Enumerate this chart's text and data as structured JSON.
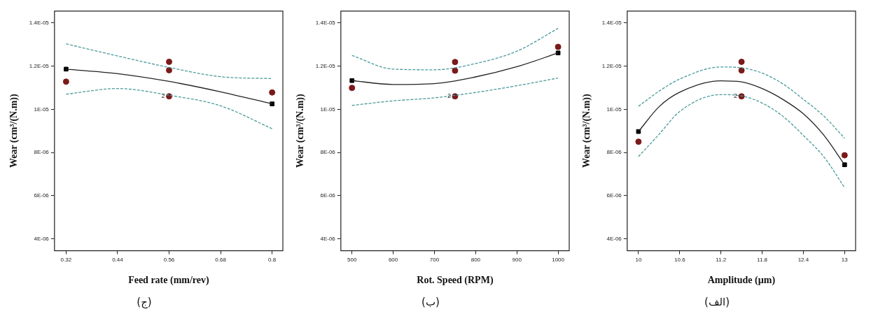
{
  "chart_data": [
    {
      "type": "scatter",
      "title": "(ج)",
      "xlabel": "Feed rate (mm/rev)",
      "ylabel": "Wear (cm³/(N.m))",
      "xlim": [
        0.293,
        0.825
      ],
      "xticks": [
        0.32,
        0.44,
        0.56,
        0.68,
        0.8
      ],
      "ylim": [
        3.45e-06,
        1.455e-05
      ],
      "yticks": [
        {
          "value": 1.4e-05,
          "label": "1.4E-05"
        },
        {
          "value": 1.2e-05,
          "label": "1.2E-05"
        },
        {
          "value": 1e-05,
          "label": "1E-05"
        },
        {
          "value": 8e-06,
          "label": "8E-06"
        },
        {
          "value": 6e-06,
          "label": "6E-06"
        },
        {
          "value": 4e-06,
          "label": "4E-06"
        }
      ],
      "grid": false,
      "legend": false,
      "series": [
        {
          "type": "line",
          "color": "#222222",
          "marker": "none",
          "line_style": "solid",
          "x": [
            0.32,
            0.44,
            0.56,
            0.68,
            0.8
          ],
          "values": [
            1.186e-05,
            1.165e-05,
            1.129e-05,
            1.081e-05,
            1.025e-05
          ]
        },
        {
          "type": "line",
          "color": "#4a9a9a",
          "marker": "none",
          "line_style": "dashed",
          "x": [
            0.32,
            0.44,
            0.56,
            0.68,
            0.8
          ],
          "values": [
            1.303e-05,
            1.247e-05,
            1.194e-05,
            1.151e-05,
            1.142e-05
          ]
        },
        {
          "type": "line",
          "color": "#4a9a9a",
          "marker": "none",
          "line_style": "dashed",
          "x": [
            0.32,
            0.44,
            0.56,
            0.68,
            0.8
          ],
          "values": [
            1.07e-05,
            1.096e-05,
            1.065e-05,
            1.016e-05,
            9.1e-06
          ]
        },
        {
          "type": "scatter",
          "color": "#000000",
          "marker": "square",
          "x": [
            0.32,
            0.8
          ],
          "values": [
            1.186e-05,
            1.025e-05
          ]
        },
        {
          "type": "scatter",
          "color": "#7a1a1a",
          "marker": "circle",
          "x": [
            0.32,
            0.56,
            0.56,
            0.56,
            0.8
          ],
          "values": [
            1.128e-05,
            1.22e-05,
            1.181e-05,
            1.06e-05,
            1.078e-05
          ]
        }
      ],
      "annotations": [
        {
          "text": "2",
          "x": 0.56,
          "y": 1.06e-05
        }
      ]
    },
    {
      "type": "scatter",
      "title": "(ب)",
      "xlabel": "Rot. Speed (RPM)",
      "ylabel": "Wear (cm³/(N.m))",
      "xlim": [
        473,
        1027
      ],
      "xticks": [
        500,
        600,
        700,
        800,
        900,
        1000
      ],
      "ylim": [
        3.45e-06,
        1.455e-05
      ],
      "yticks": [
        {
          "value": 1.4e-05,
          "label": "1.4E-05"
        },
        {
          "value": 1.2e-05,
          "label": "1.2E-05"
        },
        {
          "value": 1e-05,
          "label": "1E-05"
        },
        {
          "value": 8e-06,
          "label": "8E-06"
        },
        {
          "value": 6e-06,
          "label": "6E-06"
        },
        {
          "value": 4e-06,
          "label": "4E-06"
        }
      ],
      "grid": false,
      "legend": false,
      "series": [
        {
          "type": "line",
          "color": "#222222",
          "marker": "none",
          "line_style": "solid",
          "x": [
            500,
            600,
            700,
            800,
            900,
            1000
          ],
          "values": [
            1.133e-05,
            1.115e-05,
            1.119e-05,
            1.15e-05,
            1.197e-05,
            1.261e-05
          ]
        },
        {
          "type": "line",
          "color": "#4a9a9a",
          "marker": "none",
          "line_style": "dashed",
          "x": [
            500,
            600,
            700,
            800,
            900,
            1000
          ],
          "values": [
            1.249e-05,
            1.186e-05,
            1.183e-05,
            1.212e-05,
            1.269e-05,
            1.375e-05
          ]
        },
        {
          "type": "line",
          "color": "#4a9a9a",
          "marker": "none",
          "line_style": "dashed",
          "x": [
            500,
            600,
            700,
            800,
            900,
            1000
          ],
          "values": [
            1.018e-05,
            1.039e-05,
            1.053e-05,
            1.078e-05,
            1.109e-05,
            1.145e-05
          ]
        },
        {
          "type": "scatter",
          "color": "#000000",
          "marker": "square",
          "x": [
            500,
            1000
          ],
          "values": [
            1.133e-05,
            1.261e-05
          ]
        },
        {
          "type": "scatter",
          "color": "#7a1a1a",
          "marker": "circle",
          "x": [
            500,
            750,
            750,
            750,
            1000
          ],
          "values": [
            1.099e-05,
            1.219e-05,
            1.179e-05,
            1.06e-05,
            1.289e-05
          ]
        }
      ],
      "annotations": [
        {
          "text": "2",
          "x": 750,
          "y": 1.06e-05
        }
      ]
    },
    {
      "type": "scatter",
      "title": "(الف)",
      "xlabel": "Amplitude (µm)",
      "ylabel": "Wear (cm³/(N.m))",
      "xlim": [
        9.836,
        13.16
      ],
      "xticks": [
        10,
        10.6,
        11.2,
        11.8,
        12.4,
        13
      ],
      "ylim": [
        3.45e-06,
        1.455e-05
      ],
      "yticks": [
        {
          "value": 1.4e-05,
          "label": "1.4E-05"
        },
        {
          "value": 1.2e-05,
          "label": "1.2E-05"
        },
        {
          "value": 1e-05,
          "label": "1E-05"
        },
        {
          "value": 8e-06,
          "label": "8E-06"
        },
        {
          "value": 6e-06,
          "label": "6E-06"
        },
        {
          "value": 4e-06,
          "label": "4E-06"
        }
      ],
      "grid": false,
      "legend": false,
      "series": [
        {
          "type": "line",
          "color": "#222222",
          "marker": "none",
          "line_style": "solid",
          "x": [
            10,
            10.3,
            10.6,
            11.2,
            11.5,
            11.8,
            12.1,
            12.4,
            12.7,
            13
          ],
          "values": [
            8.97e-06,
            1.012e-05,
            1.079e-05,
            1.132e-05,
            1.127e-05,
            1.096e-05,
            1.046e-05,
            9.79e-06,
            8.79e-06,
            7.43e-06
          ]
        },
        {
          "type": "line",
          "color": "#4a9a9a",
          "marker": "none",
          "line_style": "dashed",
          "x": [
            10,
            10.3,
            10.6,
            11.2,
            11.5,
            11.8,
            12.1,
            12.4,
            12.7,
            13
          ],
          "values": [
            1.014e-05,
            1.084e-05,
            1.14e-05,
            1.196e-05,
            1.192e-05,
            1.168e-05,
            1.118e-05,
            1.046e-05,
            9.68e-06,
            8.66e-06
          ]
        },
        {
          "type": "line",
          "color": "#4a9a9a",
          "marker": "none",
          "line_style": "dashed",
          "x": [
            10,
            10.3,
            10.6,
            11.2,
            11.5,
            11.8,
            12.1,
            12.4,
            12.7,
            13
          ],
          "values": [
            7.81e-06,
            8.84e-06,
            9.9e-06,
            1.068e-05,
            1.062e-05,
            1.029e-05,
            9.68e-06,
            8.79e-06,
            7.79e-06,
            6.37e-06
          ]
        },
        {
          "type": "scatter",
          "color": "#000000",
          "marker": "square",
          "x": [
            10,
            13
          ],
          "values": [
            8.97e-06,
            7.43e-06
          ]
        },
        {
          "type": "scatter",
          "color": "#7a1a1a",
          "marker": "circle",
          "x": [
            10,
            11.5,
            11.5,
            11.5,
            13
          ],
          "values": [
            8.5e-06,
            1.22e-05,
            1.18e-05,
            1.06e-05,
            7.87e-06
          ]
        }
      ],
      "annotations": [
        {
          "text": "2",
          "x": 11.5,
          "y": 1.06e-05
        }
      ]
    }
  ]
}
